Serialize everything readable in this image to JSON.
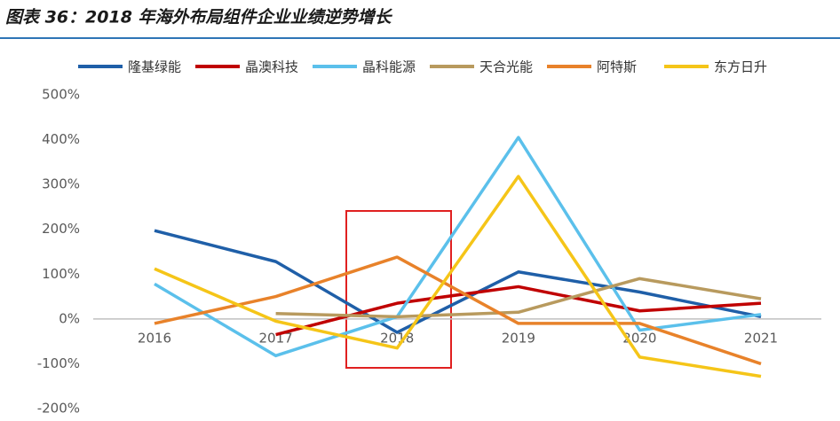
{
  "chart_data": {
    "type": "line",
    "title": "图表 36：2018 年海外布局组件企业业绩逆势增长",
    "categories": [
      "2016",
      "2017",
      "2018",
      "2019",
      "2020",
      "2021"
    ],
    "series": [
      {
        "name": "隆基绿能",
        "color": "#1f5fa8",
        "values": [
          197,
          128,
          -30,
          105,
          60,
          5
        ]
      },
      {
        "name": "晶澳科技",
        "color": "#c00000",
        "values": [
          null,
          -35,
          35,
          72,
          18,
          35
        ]
      },
      {
        "name": "晶科能源",
        "color": "#5bc0eb",
        "values": [
          78,
          -82,
          5,
          405,
          -25,
          10
        ]
      },
      {
        "name": "天合光能",
        "color": "#b89a5e",
        "values": [
          null,
          12,
          5,
          15,
          90,
          45
        ]
      },
      {
        "name": "阿特斯",
        "color": "#e8822a",
        "values": [
          -10,
          50,
          138,
          -10,
          -10,
          -100
        ]
      },
      {
        "name": "东方日升",
        "color": "#f5c518",
        "values": [
          112,
          -5,
          -65,
          318,
          -85,
          -128
        ]
      }
    ],
    "ylim": [
      -200,
      500
    ],
    "yticks": [
      {
        "value": -200,
        "label": "-200%"
      },
      {
        "value": -100,
        "label": "-100%"
      },
      {
        "value": 0,
        "label": "0%"
      },
      {
        "value": 100,
        "label": "100%"
      },
      {
        "value": 200,
        "label": "200%"
      },
      {
        "value": 300,
        "label": "300%"
      },
      {
        "value": 400,
        "label": "400%"
      },
      {
        "value": 500,
        "label": "500%"
      }
    ],
    "grid": false,
    "legend": "top"
  }
}
